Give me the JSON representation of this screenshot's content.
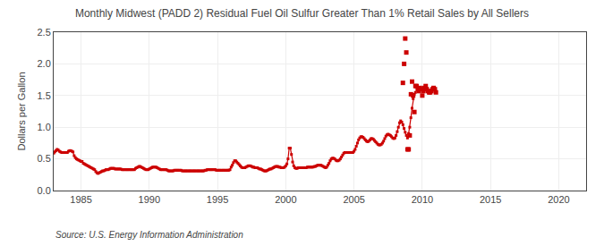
{
  "chart_data": {
    "type": "line",
    "title": "Monthly Midwest (PADD 2) Residual Fuel Oil Sulfur Greater Than 1% Retail Sales by All Sellers",
    "ylabel": "Dollars per Gallon",
    "source": "Source: U.S. Energy Information Administration",
    "xlim": [
      1983,
      2022
    ],
    "ylim": [
      0.0,
      2.5
    ],
    "xticks": [
      1985,
      1990,
      1995,
      2000,
      2005,
      2010,
      2015,
      2020
    ],
    "yticks": [
      {
        "value": 0,
        "label": "0.0"
      },
      0.5,
      {
        "value": 1,
        "label": "1.0"
      },
      1.5,
      {
        "value": 2,
        "label": "2.0"
      },
      2.5
    ],
    "grid": true,
    "series": [
      {
        "color": "#cc0000",
        "line_style": "solid",
        "marker": "square",
        "x": [
          1983,
          1983.08333,
          1983.16666,
          1983.24999,
          1983.33332,
          1983.41665,
          1983.49998,
          1983.58331,
          1983.66664,
          1983.74997,
          1983.8333,
          1983.91663,
          1983.99996,
          1984.08329,
          1984.16662,
          1984.24995,
          1984.33328,
          1984.41661,
          1984.49994,
          1984.58327,
          1984.6666,
          1984.74993,
          1984.83326,
          1984.91659,
          1984.99992,
          1985.08325,
          1985.16658,
          1985.24991,
          1985.33324,
          1985.41657,
          1985.4999,
          1985.58323,
          1985.66656,
          1985.74989,
          1985.83322,
          1985.91655,
          1985.99988,
          1986.08321,
          1986.16654,
          1986.24987,
          1986.3332,
          1986.41653,
          1986.49986,
          1986.58319,
          1986.66652,
          1986.74985,
          1986.83318,
          1986.91651,
          1986.99984,
          1987.08317,
          1987.1665,
          1987.24983,
          1987.33316,
          1987.41649,
          1987.49982,
          1987.58315,
          1987.66648,
          1987.74981,
          1987.83314,
          1987.91647,
          1987.9998,
          1988.08313,
          1988.16646,
          1988.24979,
          1988.33312,
          1988.41645,
          1988.49978,
          1988.58311,
          1988.66644,
          1988.74977,
          1988.8331,
          1988.91643,
          1988.99976,
          1989.08309,
          1989.16642,
          1989.24975,
          1989.33308,
          1989.41641,
          1989.49974,
          1989.58307,
          1989.6664,
          1989.74973,
          1989.83306,
          1989.91639,
          1989.99972,
          1990.08305,
          1990.16638,
          1990.24971,
          1990.33304,
          1990.41637,
          1990.4997,
          1990.58303,
          1990.66636,
          1990.74969,
          1990.83302,
          1990.91635,
          1990.99968,
          1991.08301,
          1991.16634,
          1991.24967,
          1991.333,
          1991.41633,
          1991.49966,
          1991.58299,
          1991.66632,
          1991.74965,
          1991.83298,
          1991.91631,
          1991.99964,
          1992.08297,
          1992.1663,
          1992.24963,
          1992.33296,
          1992.41629,
          1992.49962,
          1992.58295,
          1992.66628,
          1992.74961,
          1992.83294,
          1992.91627,
          1992.9996,
          1993.08293,
          1993.16626,
          1993.24959,
          1993.33292,
          1993.41625,
          1993.49958,
          1993.58291,
          1993.66624,
          1993.74957,
          1993.8329,
          1993.91623,
          1993.99956,
          1994.08289,
          1994.16622,
          1994.24955,
          1994.33288,
          1994.41621,
          1994.49954,
          1994.58287,
          1994.6662,
          1994.74953,
          1994.83286,
          1994.91619,
          1994.99952,
          1995.08285,
          1995.16618,
          1995.24951,
          1995.33284,
          1995.41617,
          1995.4995,
          1995.58283,
          1995.66616,
          1995.74949,
          1995.83282,
          1995.91615,
          1995.99948,
          1996.08281,
          1996.16614,
          1996.24947,
          1996.3328,
          1996.41613,
          1996.49946,
          1996.58279,
          1996.66612,
          1996.74945,
          1996.83278,
          1996.91611,
          1996.99944,
          1997.08277,
          1997.1661,
          1997.24943,
          1997.33276,
          1997.41609,
          1997.49942,
          1997.58275,
          1997.66608,
          1997.74941,
          1997.83274,
          1997.91607,
          1997.9994,
          1998.08273,
          1998.16606,
          1998.24939,
          1998.33272,
          1998.41605,
          1998.49938,
          1998.58271,
          1998.66604,
          1998.74937,
          1998.8327,
          1998.91603,
          1998.99936,
          1999.08269,
          1999.16602,
          1999.24935,
          1999.33268,
          1999.41601,
          1999.49934,
          1999.58267,
          1999.666,
          1999.74933,
          1999.83266,
          1999.91599,
          1999.99932,
          2000.08265,
          2000.16598,
          2000.24931,
          2000.33264,
          2000.41597,
          2000.4993,
          2000.58263,
          2000.66596,
          2000.74929,
          2000.83262,
          2000.91595,
          2000.99928,
          2001.08261,
          2001.16594,
          2001.24927,
          2001.3326,
          2001.41593,
          2001.49926,
          2001.58259,
          2001.66592,
          2001.74925,
          2001.83258,
          2001.91591,
          2001.99924,
          2002.08257,
          2002.1659,
          2002.24923,
          2002.33256,
          2002.41589,
          2002.49922,
          2002.58255,
          2002.66588,
          2002.74921,
          2002.83254,
          2002.91587,
          2002.9992,
          2003.08253,
          2003.16586,
          2003.24919,
          2003.33252,
          2003.41585,
          2003.49918,
          2003.58251,
          2003.66584,
          2003.74917,
          2003.8325,
          2003.91583,
          2003.99916,
          2004.08249,
          2004.16582,
          2004.24915,
          2004.33248,
          2004.41581,
          2004.49914,
          2004.58247,
          2004.6658,
          2004.74913,
          2004.83246,
          2004.91579,
          2004.99912,
          2005.08245,
          2005.16578,
          2005.24911,
          2005.33244,
          2005.41577,
          2005.4991,
          2005.58243,
          2005.66576,
          2005.74909,
          2005.83242,
          2005.91575,
          2005.99908,
          2006.08241,
          2006.16574,
          2006.24907,
          2006.3324,
          2006.41573,
          2006.49906,
          2006.58239,
          2006.66572,
          2006.74905,
          2006.83238,
          2006.91571,
          2006.99904,
          2007.08237,
          2007.1657,
          2007.24903,
          2007.33236,
          2007.41569,
          2007.49902,
          2007.58235,
          2007.66568,
          2007.74901,
          2007.83234,
          2007.91567,
          2007.999,
          2008.08233,
          2008.16566,
          2008.24899,
          2008.33232,
          2008.41565,
          2008.49898,
          2008.58231,
          2008.66564,
          2008.74897,
          2008.8323,
          2008.91563,
          2008.99896,
          2009.08229,
          2009.16562,
          2009.24895,
          2009.33228,
          2009.41561,
          2009.49894
        ],
        "values": [
          0.59,
          0.61,
          0.63,
          0.65,
          0.64,
          0.62,
          0.61,
          0.6,
          0.6,
          0.6,
          0.6,
          0.6,
          0.6,
          0.62,
          0.63,
          0.63,
          0.62,
          0.61,
          0.55,
          0.52,
          0.5,
          0.49,
          0.48,
          0.47,
          0.46,
          0.46,
          0.43,
          0.42,
          0.41,
          0.4,
          0.39,
          0.38,
          0.37,
          0.36,
          0.35,
          0.34,
          0.33,
          0.3,
          0.28,
          0.27,
          0.28,
          0.29,
          0.3,
          0.31,
          0.31,
          0.32,
          0.33,
          0.33,
          0.33,
          0.34,
          0.35,
          0.35,
          0.35,
          0.35,
          0.34,
          0.34,
          0.34,
          0.34,
          0.34,
          0.34,
          0.33,
          0.33,
          0.33,
          0.33,
          0.33,
          0.33,
          0.33,
          0.33,
          0.33,
          0.33,
          0.33,
          0.33,
          0.35,
          0.36,
          0.37,
          0.38,
          0.38,
          0.37,
          0.36,
          0.35,
          0.34,
          0.33,
          0.33,
          0.33,
          0.34,
          0.35,
          0.36,
          0.37,
          0.37,
          0.37,
          0.37,
          0.36,
          0.35,
          0.34,
          0.33,
          0.33,
          0.33,
          0.33,
          0.33,
          0.33,
          0.32,
          0.31,
          0.31,
          0.31,
          0.31,
          0.31,
          0.32,
          0.32,
          0.32,
          0.32,
          0.32,
          0.32,
          0.32,
          0.31,
          0.31,
          0.31,
          0.31,
          0.31,
          0.31,
          0.31,
          0.31,
          0.31,
          0.31,
          0.31,
          0.31,
          0.31,
          0.31,
          0.31,
          0.31,
          0.31,
          0.31,
          0.31,
          0.31,
          0.32,
          0.32,
          0.33,
          0.33,
          0.33,
          0.33,
          0.33,
          0.33,
          0.33,
          0.33,
          0.32,
          0.32,
          0.32,
          0.32,
          0.32,
          0.32,
          0.32,
          0.32,
          0.32,
          0.32,
          0.32,
          0.32,
          0.33,
          0.37,
          0.4,
          0.44,
          0.47,
          0.47,
          0.45,
          0.43,
          0.41,
          0.39,
          0.37,
          0.36,
          0.36,
          0.36,
          0.37,
          0.38,
          0.39,
          0.39,
          0.39,
          0.38,
          0.37,
          0.37,
          0.36,
          0.36,
          0.36,
          0.35,
          0.34,
          0.34,
          0.33,
          0.32,
          0.31,
          0.31,
          0.31,
          0.32,
          0.33,
          0.34,
          0.34,
          0.35,
          0.36,
          0.37,
          0.38,
          0.38,
          0.38,
          0.37,
          0.37,
          0.36,
          0.36,
          0.36,
          0.37,
          0.39,
          0.42,
          0.5,
          0.67,
          0.67,
          0.57,
          0.45,
          0.39,
          0.36,
          0.35,
          0.35,
          0.36,
          0.36,
          0.36,
          0.36,
          0.36,
          0.36,
          0.36,
          0.36,
          0.37,
          0.37,
          0.37,
          0.37,
          0.37,
          0.37,
          0.38,
          0.38,
          0.39,
          0.4,
          0.4,
          0.4,
          0.4,
          0.39,
          0.38,
          0.37,
          0.36,
          0.37,
          0.4,
          0.43,
          0.47,
          0.5,
          0.51,
          0.51,
          0.5,
          0.48,
          0.47,
          0.47,
          0.48,
          0.5,
          0.53,
          0.56,
          0.59,
          0.6,
          0.6,
          0.6,
          0.6,
          0.6,
          0.6,
          0.6,
          0.6,
          0.62,
          0.65,
          0.7,
          0.75,
          0.8,
          0.83,
          0.85,
          0.85,
          0.84,
          0.82,
          0.8,
          0.78,
          0.77,
          0.78,
          0.8,
          0.82,
          0.82,
          0.81,
          0.79,
          0.77,
          0.75,
          0.73,
          0.72,
          0.72,
          0.73,
          0.75,
          0.78,
          0.82,
          0.86,
          0.88,
          0.89,
          0.88,
          0.87,
          0.85,
          0.83,
          0.82,
          0.83,
          0.87,
          0.93,
          1.0,
          1.07,
          1.1,
          1.08,
          1.04,
          0.98,
          0.92,
          0.87,
          0.83,
          0.9,
          1.0,
          1.15,
          1.3,
          1.45,
          1.52,
          1.55
        ]
      },
      {
        "color": "#cc0000",
        "line_style": "none",
        "marker": "square",
        "x": [
          2008.58,
          2008.67,
          2008.75,
          2008.83,
          2008.92,
          2009.0,
          2009.08,
          2009.17,
          2009.25,
          2009.33,
          2009.42,
          2009.5,
          2009.58,
          2009.67,
          2009.75,
          2009.83,
          2009.92,
          2010.0,
          2010.08,
          2010.17,
          2010.25,
          2010.33,
          2010.42,
          2010.5,
          2010.58,
          2010.67,
          2010.75,
          2010.83,
          2010.92,
          2011.0
        ],
        "values": [
          1.7,
          2.0,
          2.4,
          2.18,
          0.65,
          0.65,
          0.87,
          1.52,
          1.72,
          1.5,
          1.24,
          1.65,
          1.65,
          1.6,
          1.57,
          1.62,
          1.6,
          1.5,
          1.57,
          1.62,
          1.65,
          1.6,
          1.57,
          1.55,
          1.55,
          1.57,
          1.6,
          1.62,
          1.6,
          1.55
        ]
      }
    ]
  }
}
